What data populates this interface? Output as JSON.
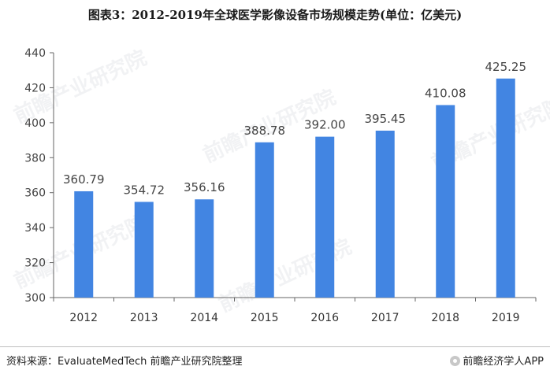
{
  "title": "图表3：2012-2019年全球医学影像设备市场规模走势(单位：亿美元)",
  "footer": {
    "source": "资料来源：EvaluateMedTech 前瞻产业研究院整理",
    "brand": "前瞻经济学人APP"
  },
  "watermark": "前瞻产业研究院",
  "colors": {
    "bar": "#4285e2",
    "axis": "#666666",
    "text": "#444444"
  },
  "chart_data": {
    "type": "bar",
    "categories": [
      "2012",
      "2013",
      "2014",
      "2015",
      "2016",
      "2017",
      "2018",
      "2019"
    ],
    "values": [
      360.79,
      354.72,
      356.16,
      388.78,
      392.0,
      395.45,
      410.08,
      425.25
    ],
    "data_labels": [
      "360.79",
      "354.72",
      "356.16",
      "388.78",
      "392.00",
      "395.45",
      "410.08",
      "425.25"
    ],
    "ylim": [
      300,
      440
    ],
    "yticks": [
      300,
      320,
      340,
      360,
      380,
      400,
      420,
      440
    ],
    "grid": false,
    "xlabel": "",
    "ylabel": ""
  }
}
